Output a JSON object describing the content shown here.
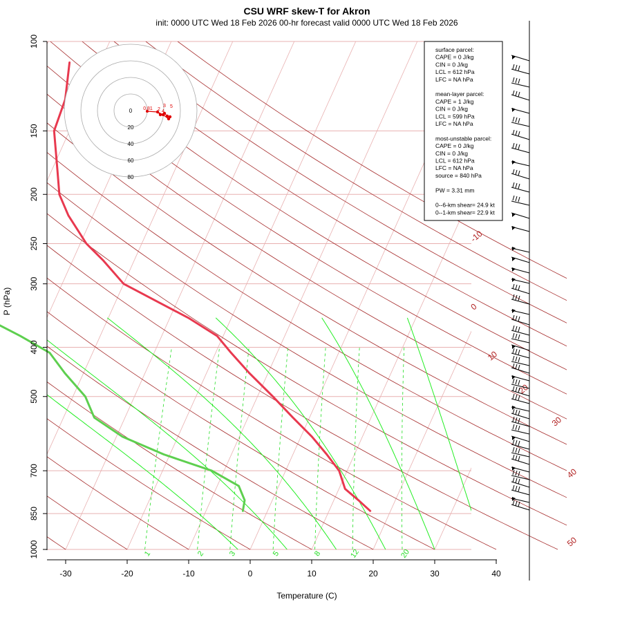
{
  "header": {
    "title": "CSU WRF skew-T for Akron",
    "subtitle": "init: 0000 UTC Wed 18 Feb 2026     00-hr forecast valid 0000 UTC Wed 18 Feb 2026"
  },
  "colors": {
    "temperature": "#e8394f",
    "dewpoint": "#5ecf4f",
    "dry_adiabat": "#a52a2a",
    "moist_adiabat": "#22ee22",
    "mixing_ratio": "#22dd22",
    "isobar": "#e8b0b0",
    "isotherm": "#e8b0b0",
    "hodograph": "#e00000"
  },
  "chart_data": {
    "type": "skew-t",
    "xlabel": "Temperature (C)",
    "ylabel": "P (hPa)",
    "xlim": [
      -33,
      46
    ],
    "ylim": [
      1000,
      100
    ],
    "x_scale": "linear",
    "y_scale": "log",
    "x_ticks": [
      -30,
      -20,
      -10,
      0,
      10,
      20,
      30,
      40
    ],
    "y_ticks": [
      100,
      150,
      200,
      250,
      300,
      400,
      500,
      700,
      850,
      1000
    ],
    "isobars": [
      100,
      150,
      200,
      250,
      300,
      400,
      500,
      700,
      850,
      1000
    ],
    "grid": true,
    "dry_adiabat_labels": [
      "-10",
      "0",
      "10",
      "20",
      "30",
      "40",
      "50"
    ],
    "mixing_ratio_labels": [
      "1",
      "2",
      "3",
      "5",
      "8",
      "12",
      "20"
    ],
    "temperature_profile": [
      {
        "p": 840,
        "t": 16.7
      },
      {
        "p": 800,
        "t": 14.0
      },
      {
        "p": 760,
        "t": 11.0
      },
      {
        "p": 700,
        "t": 8.7
      },
      {
        "p": 650,
        "t": 5.5
      },
      {
        "p": 600,
        "t": 1.8
      },
      {
        "p": 550,
        "t": -2.7
      },
      {
        "p": 500,
        "t": -7.5
      },
      {
        "p": 450,
        "t": -13.0
      },
      {
        "p": 410,
        "t": -17.5
      },
      {
        "p": 380,
        "t": -21.0
      },
      {
        "p": 350,
        "t": -27.0
      },
      {
        "p": 330,
        "t": -32.0
      },
      {
        "p": 300,
        "t": -40.0
      },
      {
        "p": 270,
        "t": -45.0
      },
      {
        "p": 250,
        "t": -49.0
      },
      {
        "p": 220,
        "t": -54.0
      },
      {
        "p": 200,
        "t": -57.0
      },
      {
        "p": 180,
        "t": -59.0
      },
      {
        "p": 150,
        "t": -62.5
      },
      {
        "p": 130,
        "t": -63.0
      },
      {
        "p": 110,
        "t": -65.0
      }
    ],
    "dewpoint_profile": [
      {
        "p": 840,
        "t": -4.0
      },
      {
        "p": 800,
        "t": -4.5
      },
      {
        "p": 750,
        "t": -6.5
      },
      {
        "p": 700,
        "t": -12.0
      },
      {
        "p": 650,
        "t": -21.0
      },
      {
        "p": 600,
        "t": -29.0
      },
      {
        "p": 550,
        "t": -35.0
      },
      {
        "p": 500,
        "t": -38.0
      },
      {
        "p": 450,
        "t": -43.0
      },
      {
        "p": 410,
        "t": -47.0
      },
      {
        "p": 380,
        "t": -53.0
      },
      {
        "p": 350,
        "t": -60.0
      },
      {
        "p": 320,
        "t": -66.0
      },
      {
        "p": 300,
        "t": -70.0
      },
      {
        "p": 270,
        "t": -75.0
      },
      {
        "p": 250,
        "t": -78.0
      },
      {
        "p": 220,
        "t": -84.0
      },
      {
        "p": 195,
        "t": -89.0
      },
      {
        "p": 175,
        "t": -89.5
      }
    ],
    "hodograph": {
      "ring_labels": [
        "0",
        "20",
        "40",
        "60",
        "80"
      ],
      "point_labels": [
        "0.81",
        "2",
        "4",
        "3",
        "5"
      ]
    },
    "wind_barbs_present": true
  },
  "info_box": [
    "surface parcel:",
    "CAPE = 0 J/kg",
    "CIN = 0 J/kg",
    "LCL = 612 hPa",
    "LFC = NA hPa",
    "",
    "mean-layer parcel:",
    "CAPE = 1 J/kg",
    "CIN = 0 J/kg",
    "LCL = 599 hPa",
    "LFC = NA hPa",
    "",
    "most-unstable parcel:",
    "CAPE = 0 J/kg",
    "CIN = 0 J/kg",
    "LCL = 612 hPa",
    "LFC = NA hPa",
    "source = 840 hPa",
    "",
    "PW =  3.31 mm",
    "",
    "0--6-km shear= 24.9 kt",
    "0--1-km shear= 22.9 kt"
  ]
}
